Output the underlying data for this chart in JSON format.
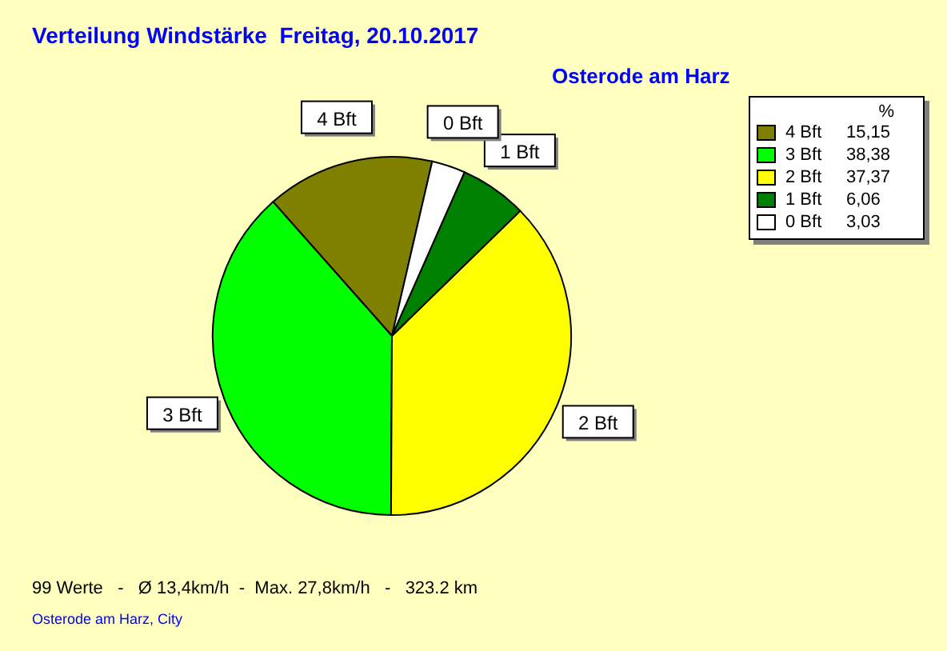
{
  "chart_data": {
    "type": "pie",
    "title": "Verteilung Windstärke  Freitag, 20.10.2017",
    "subtitle": "Osterode am Harz",
    "categories": [
      "4 Bft",
      "3 Bft",
      "2 Bft",
      "1 Bft",
      "0 Bft"
    ],
    "values": [
      15.15,
      38.38,
      37.37,
      6.06,
      3.03
    ],
    "colors": [
      "#808000",
      "#00ff00",
      "#ffff00",
      "#008000",
      "#ffffff"
    ],
    "value_labels": [
      "15,15",
      "38,38",
      "37,37",
      "6,06",
      "3,03"
    ],
    "legend_title": "%",
    "legend": "top right",
    "annotations": [
      "99 Werte   -   Ø 13,4km/h  -  Max. 27,8km/h   -   323.2 km",
      "Osterode am Harz, City"
    ]
  }
}
